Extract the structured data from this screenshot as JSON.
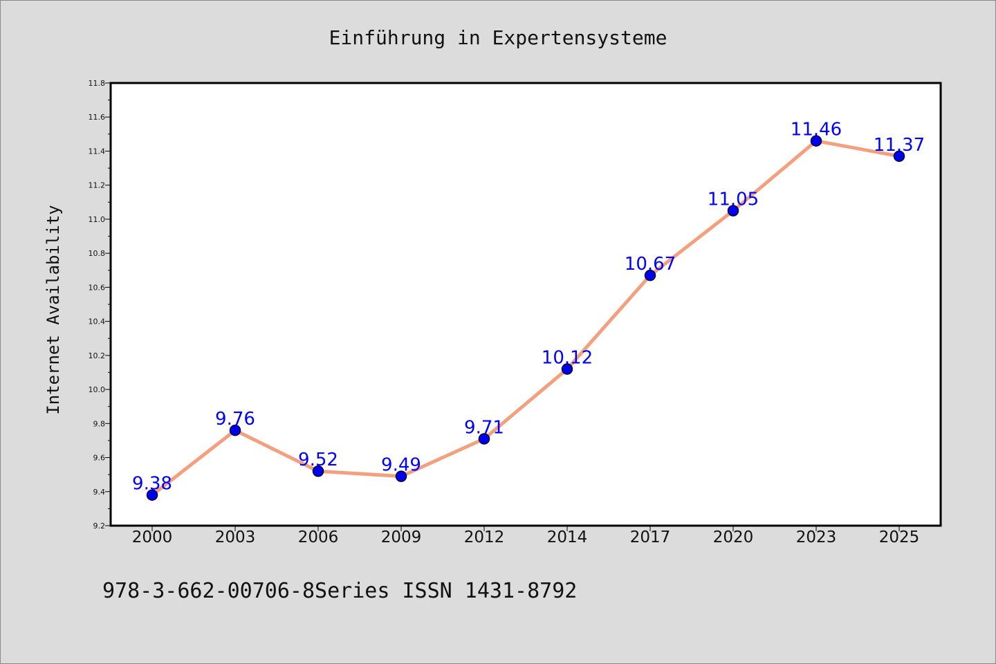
{
  "page": {
    "title": "Einführung in Expertensysteme",
    "footer": "978-3-662-00706-8Series ISSN 1431-8792"
  },
  "chart_data": {
    "type": "line",
    "title": "Einführung in Expertensysteme",
    "xlabel": "",
    "ylabel": "Internet Availability",
    "categories": [
      "2000",
      "2003",
      "2006",
      "2009",
      "2012",
      "2014",
      "2017",
      "2020",
      "2023",
      "2025"
    ],
    "series": [
      {
        "values": [
          9.38,
          9.76,
          9.52,
          9.49,
          9.71,
          10.12,
          10.67,
          11.05,
          11.46,
          11.37
        ],
        "data_labels": [
          "9.38",
          "9.76",
          "9.52",
          "9.49",
          "9.71",
          "10.12",
          "10.67",
          "11.05",
          "11.46",
          "11.37"
        ]
      }
    ],
    "ylim": [
      9.2,
      11.8
    ],
    "yticks": [
      "9.2",
      "9.4",
      "9.6",
      "9.8",
      "10.0",
      "10.2",
      "10.4",
      "10.6",
      "10.8",
      "11.0",
      "11.2",
      "11.4",
      "11.6",
      "11.8"
    ],
    "grid": false,
    "legend": "none",
    "colors": {
      "line": "#f4a07e",
      "marker_fill": "#0000ee",
      "marker_edge": "#000033",
      "label": "#0000ff",
      "background": "#dcdcdc",
      "plot_background": "#ffffff"
    }
  }
}
